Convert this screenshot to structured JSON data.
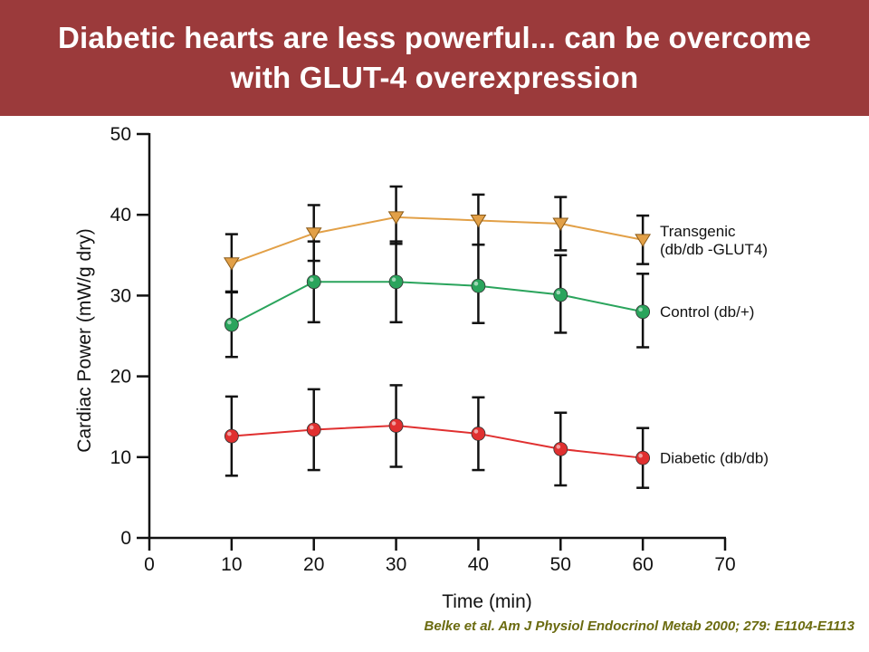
{
  "title": {
    "line1": "Diabetic hearts are less powerful... can be overcome",
    "line2": "with GLUT-4 overexpression"
  },
  "citation": "Belke et al. Am J Physiol Endocrinol  Metab 2000; 279: E1104-E1113",
  "colors": {
    "title_bg": "#9b3a3b",
    "transgenic": "#e2a047",
    "control": "#2aa45c",
    "diabetic": "#e03030"
  },
  "chart_data": {
    "type": "line",
    "xlabel": "Time (min)",
    "ylabel": "Cardiac Power (mW/g dry)",
    "xlim": [
      0,
      70
    ],
    "ylim": [
      0,
      50
    ],
    "xticks": [
      "0",
      "10",
      "20",
      "30",
      "40",
      "50",
      "60",
      "70"
    ],
    "yticks": [
      "0",
      "10",
      "20",
      "30",
      "40",
      "50"
    ],
    "x": [
      10,
      20,
      30,
      40,
      50,
      60
    ],
    "grid": false,
    "legend": "inline-right",
    "series": [
      {
        "label_lines": [
          "Transgenic",
          "(db/db -GLUT4)"
        ],
        "marker": "triangle-down",
        "color": "#e2a047",
        "values": [
          34.0,
          37.7,
          39.7,
          39.3,
          38.9,
          36.9
        ],
        "err_low": [
          30.5,
          34.3,
          36.4,
          36.3,
          35.6,
          33.9
        ],
        "err_high": [
          37.6,
          41.2,
          43.5,
          42.5,
          42.2,
          39.9
        ]
      },
      {
        "label_lines": [
          "Control (db/+)"
        ],
        "marker": "circle",
        "color": "#2aa45c",
        "values": [
          26.4,
          31.7,
          31.7,
          31.2,
          30.1,
          28.0
        ],
        "err_low": [
          22.4,
          26.7,
          26.7,
          26.6,
          25.4,
          23.6
        ],
        "err_high": [
          30.4,
          36.7,
          36.7,
          36.3,
          35.0,
          32.7
        ]
      },
      {
        "label_lines": [
          "Diabetic (db/db)"
        ],
        "marker": "circle",
        "color": "#e03030",
        "values": [
          12.6,
          13.4,
          13.9,
          12.9,
          11.0,
          9.9
        ],
        "err_low": [
          7.7,
          8.4,
          8.8,
          8.4,
          6.5,
          6.2
        ],
        "err_high": [
          17.5,
          18.4,
          18.9,
          17.4,
          15.5,
          13.6
        ]
      }
    ]
  }
}
